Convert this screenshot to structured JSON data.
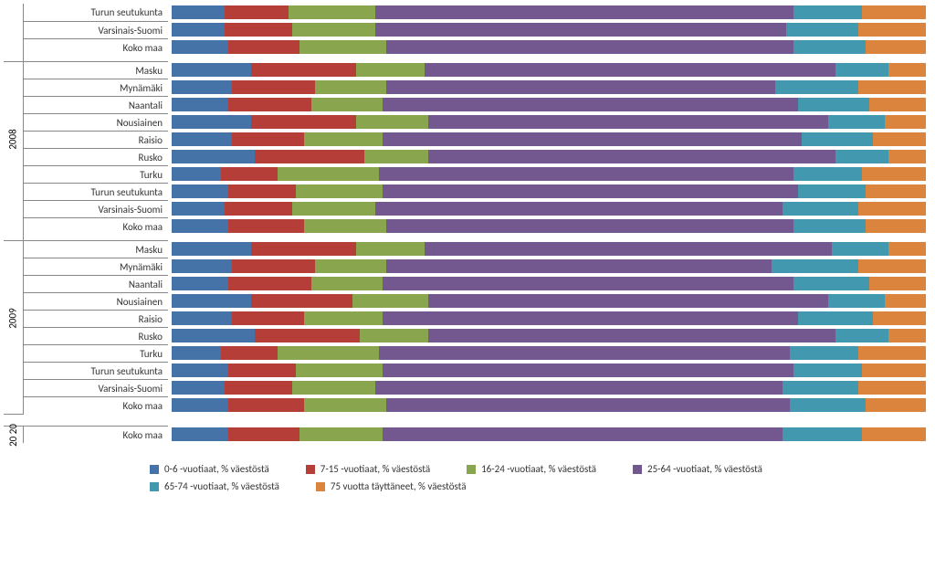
{
  "chart": {
    "type": "stacked-bar-horizontal",
    "background_color": "#ffffff",
    "gridline_color": "#888888",
    "font_family": "Calibri",
    "label_fontsize": 11,
    "legend_fontsize": 11,
    "series_colors": {
      "s0_6": "#4573a7",
      "s7_15": "#b53e38",
      "s16_24": "#89a54e",
      "s25_64": "#72588f",
      "s65_74": "#4298af",
      "s75": "#db843e"
    },
    "legend": [
      "0-6 -vuotiaat, % väestöstä",
      "7-15 -vuotiaat, % väestöstä",
      "16-24 -vuotiaat, % väestöstä",
      "25-64 -vuotiaat, % väestöstä",
      "65-74 -vuotiaat, % väestöstä",
      "75 vuotta täyttäneet, % väestöstä"
    ],
    "groups": [
      {
        "year": "",
        "year_visible": false,
        "rows": [
          {
            "label": "Turun seutukunta",
            "values": [
              7.0,
              8.5,
              11.5,
              55.5,
              9.0,
              8.5
            ]
          },
          {
            "label": "Varsinais-Suomi",
            "values": [
              7.0,
              9.0,
              11.0,
              54.5,
              9.5,
              9.0
            ]
          },
          {
            "label": "Koko maa",
            "values": [
              7.5,
              9.5,
              11.5,
              54.0,
              9.5,
              8.0
            ]
          }
        ]
      },
      {
        "year": "2008",
        "year_visible": true,
        "rows": [
          {
            "label": "Masku",
            "values": [
              10.5,
              14.0,
              9.0,
              54.5,
              7.0,
              5.0
            ]
          },
          {
            "label": "Mynämäki",
            "values": [
              8.0,
              11.0,
              9.5,
              51.5,
              11.0,
              9.0
            ]
          },
          {
            "label": "Naantali",
            "values": [
              7.5,
              11.0,
              9.5,
              55.0,
              9.5,
              7.5
            ]
          },
          {
            "label": "Nousiainen",
            "values": [
              10.5,
              14.0,
              9.5,
              53.0,
              7.5,
              5.5
            ]
          },
          {
            "label": "Raisio",
            "values": [
              8.0,
              9.5,
              10.5,
              55.5,
              9.5,
              7.0
            ]
          },
          {
            "label": "Rusko",
            "values": [
              11.0,
              14.5,
              8.5,
              54.0,
              7.0,
              5.0
            ]
          },
          {
            "label": "Turku",
            "values": [
              6.5,
              7.5,
              13.5,
              55.0,
              9.0,
              8.5
            ]
          },
          {
            "label": "Turun seutukunta",
            "values": [
              7.5,
              9.0,
              11.5,
              55.0,
              9.0,
              8.0
            ]
          },
          {
            "label": "Varsinais-Suomi",
            "values": [
              7.0,
              9.0,
              11.0,
              54.0,
              10.0,
              9.0
            ]
          },
          {
            "label": "Koko maa",
            "values": [
              7.5,
              10.0,
              11.0,
              54.0,
              9.5,
              8.0
            ]
          }
        ]
      },
      {
        "year": "2009",
        "year_visible": true,
        "rows": [
          {
            "label": "Masku",
            "values": [
              10.5,
              14.0,
              9.0,
              54.0,
              7.5,
              5.0
            ]
          },
          {
            "label": "Mynämäki",
            "values": [
              8.0,
              11.0,
              9.5,
              51.0,
              11.5,
              9.0
            ]
          },
          {
            "label": "Naantali",
            "values": [
              7.5,
              11.0,
              9.5,
              54.5,
              10.0,
              7.5
            ]
          },
          {
            "label": "Nousiainen",
            "values": [
              10.5,
              13.5,
              10.0,
              53.0,
              7.5,
              5.5
            ]
          },
          {
            "label": "Raisio",
            "values": [
              8.0,
              9.5,
              10.5,
              55.0,
              10.0,
              7.0
            ]
          },
          {
            "label": "Rusko",
            "values": [
              11.0,
              14.0,
              9.0,
              54.0,
              7.0,
              5.0
            ]
          },
          {
            "label": "Turku",
            "values": [
              6.5,
              7.5,
              13.5,
              54.5,
              9.0,
              9.0
            ]
          },
          {
            "label": "Turun seutukunta",
            "values": [
              7.5,
              9.0,
              11.5,
              54.5,
              9.0,
              8.5
            ]
          },
          {
            "label": "Varsinais-Suomi",
            "values": [
              7.0,
              9.0,
              11.0,
              54.0,
              10.0,
              9.0
            ]
          },
          {
            "label": "Koko maa",
            "values": [
              7.5,
              10.0,
              11.0,
              53.5,
              10.0,
              8.0
            ]
          }
        ]
      },
      {
        "year": "20 20",
        "year_visible": true,
        "rows": [
          {
            "label": "Koko maa",
            "values": [
              7.5,
              9.5,
              11.0,
              53.0,
              10.5,
              8.5
            ]
          }
        ]
      }
    ]
  }
}
